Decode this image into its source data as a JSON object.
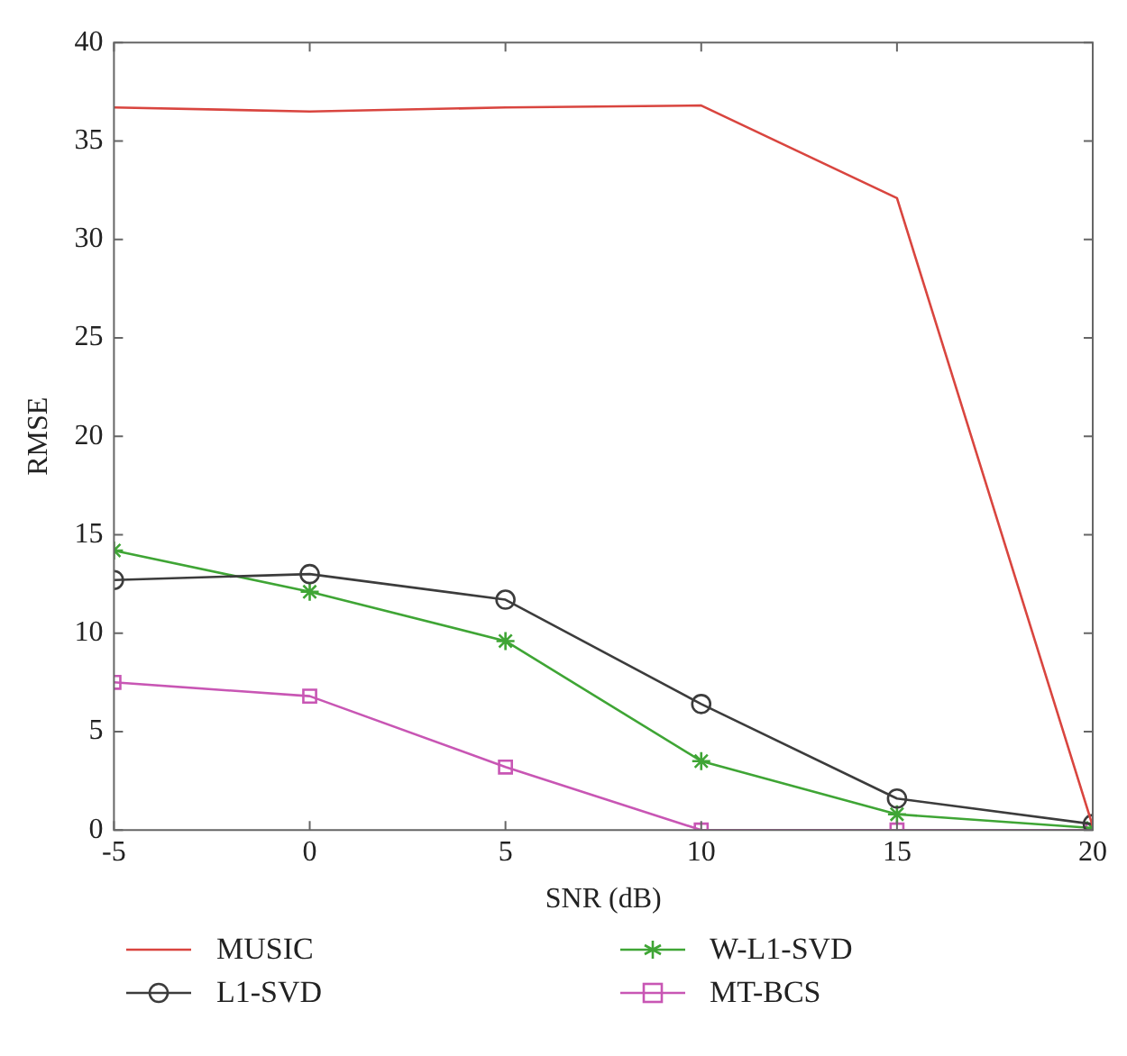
{
  "chart_data": {
    "type": "line",
    "xlabel": "SNR (dB)",
    "ylabel": "RMSE",
    "x": [
      -5,
      0,
      5,
      10,
      15,
      20
    ],
    "series": [
      {
        "name": "MUSIC",
        "color": "#d9453f",
        "marker": "none",
        "values": [
          36.7,
          36.5,
          36.7,
          36.8,
          32.1,
          0.2
        ]
      },
      {
        "name": "L1-SVD",
        "color": "#3c3c3c",
        "marker": "circle",
        "values": [
          12.7,
          13.0,
          11.7,
          6.4,
          1.6,
          0.3
        ]
      },
      {
        "name": "W-L1-SVD",
        "color": "#3fa535",
        "marker": "cross",
        "values": [
          14.2,
          12.1,
          9.6,
          3.5,
          0.8,
          0.1
        ]
      },
      {
        "name": "MT-BCS",
        "color": "#c856b4",
        "marker": "square",
        "values": [
          7.5,
          6.8,
          3.2,
          0,
          0,
          0
        ]
      }
    ],
    "xlim": [
      -5,
      20
    ],
    "xticks": [
      -5,
      0,
      5,
      10,
      15,
      20
    ],
    "ylim": [
      0,
      40
    ],
    "yticks": [
      0,
      5,
      10,
      15,
      20,
      25,
      30,
      35,
      40
    ],
    "grid": false,
    "legend": "bottom",
    "line_style": "solid"
  }
}
